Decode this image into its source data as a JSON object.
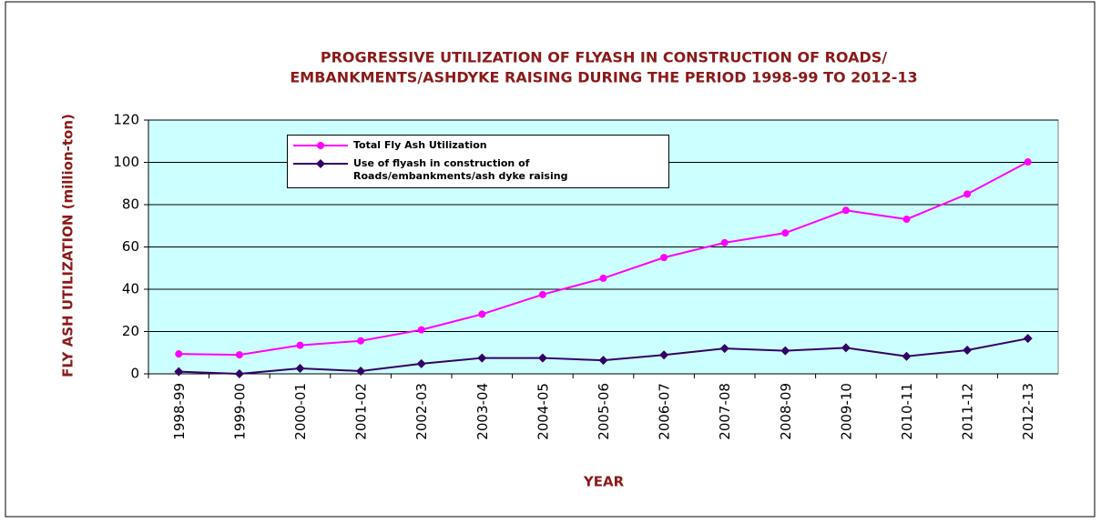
{
  "chart_data": {
    "type": "line",
    "title": [
      "PROGRESSIVE UTILIZATION OF FLYASH IN CONSTRUCTION OF ROADS/",
      "EMBANKMENTS/ASHDYKE RAISING DURING THE PERIOD 1998-99 TO 2012-13"
    ],
    "x_label": "YEAR",
    "y_label": "FLY ASH UTILIZATION (million-ton)",
    "categories": [
      "1998-99",
      "1999-00",
      "2000-01",
      "2001-02",
      "2002-03",
      "2003-04",
      "2004-05",
      "2005-06",
      "2006-07",
      "2007-08",
      "2008-09",
      "2009-10",
      "2010-11",
      "2011-12",
      "2012-13"
    ],
    "series": [
      {
        "name": "Total Fly Ash Utilization",
        "color": "#ff00ff",
        "marker": "circle",
        "values": [
          9.4,
          9.0,
          13.5,
          15.6,
          20.8,
          28.2,
          37.5,
          45.2,
          55.0,
          62.0,
          66.6,
          77.3,
          73.1,
          85.0,
          100.2
        ]
      },
      {
        "name": "Use of flyash in construction of Roads/embankments/ash dyke raising",
        "color": "#330066",
        "marker": "diamond",
        "values": [
          1.0,
          0.0,
          2.6,
          1.3,
          4.8,
          7.5,
          7.5,
          6.4,
          8.9,
          12.0,
          10.9,
          12.3,
          8.3,
          11.2,
          16.7
        ]
      }
    ],
    "ylim": [
      0,
      120
    ],
    "yticks": [
      0,
      20,
      40,
      60,
      80,
      100,
      120
    ],
    "grid": true
  }
}
